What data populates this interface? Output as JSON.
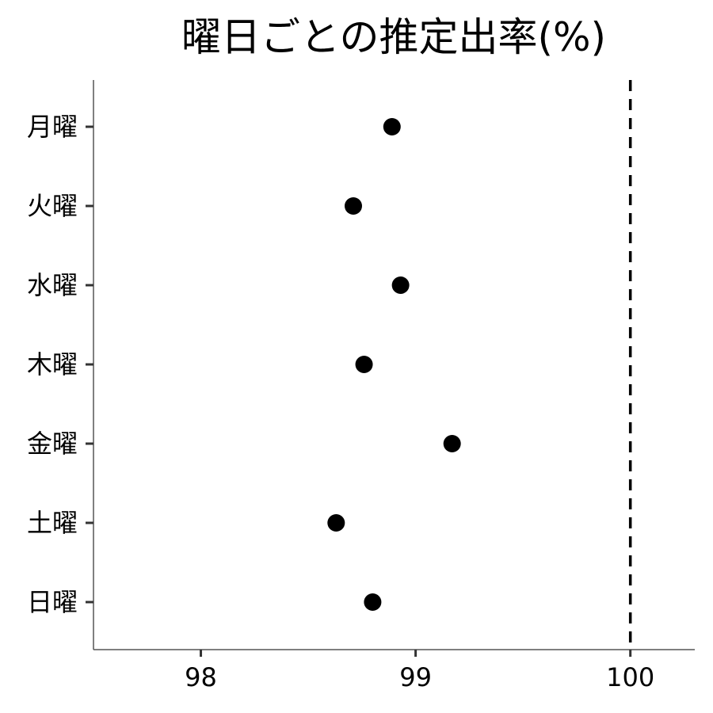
{
  "chart_data": {
    "type": "scatter",
    "title": "曜日ごとの推定出率(%)",
    "xlabel": "",
    "ylabel": "",
    "categories": [
      "月曜",
      "火曜",
      "水曜",
      "木曜",
      "金曜",
      "土曜",
      "日曜"
    ],
    "values": [
      98.89,
      98.71,
      98.93,
      98.76,
      99.17,
      98.63,
      98.8
    ],
    "xlim": [
      97.5,
      100.3
    ],
    "x_ticks": [
      98,
      99,
      100
    ],
    "x_tick_labels": [
      "98",
      "99",
      "100"
    ],
    "reference_line": {
      "x": 100,
      "style": "dashed"
    },
    "grid": false,
    "legend": "none",
    "colors": {
      "points": "#000000",
      "reference_line": "#000000",
      "axis": "#555555"
    }
  }
}
